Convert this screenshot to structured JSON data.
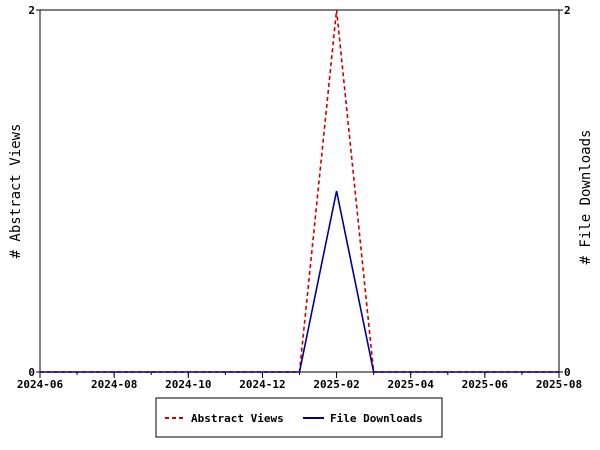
{
  "chart_data": {
    "type": "line",
    "title": "",
    "xlabel": "",
    "ylabel_left": "# Abstract Views",
    "ylabel_right": "# File Downloads",
    "x_ticks": [
      "2024-06",
      "2024-08",
      "2024-10",
      "2024-12",
      "2025-02",
      "2025-04",
      "2025-06",
      "2025-08"
    ],
    "xlim": [
      "2024-06",
      "2025-08"
    ],
    "ylim_left": [
      0,
      2
    ],
    "ylim_right": [
      0,
      2
    ],
    "y_ticks_left": [
      "0",
      "2"
    ],
    "y_ticks_right": [
      "0",
      "2"
    ],
    "grid": false,
    "legend_position": "bottom",
    "series": [
      {
        "name": "Abstract Views",
        "axis": "left",
        "color": "#cc0000",
        "dash": "dashed",
        "x": [
          "2024-06",
          "2024-07",
          "2024-08",
          "2024-09",
          "2024-10",
          "2024-11",
          "2024-12",
          "2025-01",
          "2025-02",
          "2025-03",
          "2025-04",
          "2025-05",
          "2025-06",
          "2025-07",
          "2025-08"
        ],
        "values": [
          0,
          0,
          0,
          0,
          0,
          0,
          0,
          0,
          2,
          0,
          0,
          0,
          0,
          0,
          0
        ]
      },
      {
        "name": "File Downloads",
        "axis": "right",
        "color": "#000099",
        "dash": "solid",
        "x": [
          "2024-06",
          "2024-07",
          "2024-08",
          "2024-09",
          "2024-10",
          "2024-11",
          "2024-12",
          "2025-01",
          "2025-02",
          "2025-03",
          "2025-04",
          "2025-05",
          "2025-06",
          "2025-07",
          "2025-08"
        ],
        "values": [
          0,
          0,
          0,
          0,
          0,
          0,
          0,
          0,
          1,
          0,
          0,
          0,
          0,
          0,
          0
        ]
      }
    ]
  }
}
